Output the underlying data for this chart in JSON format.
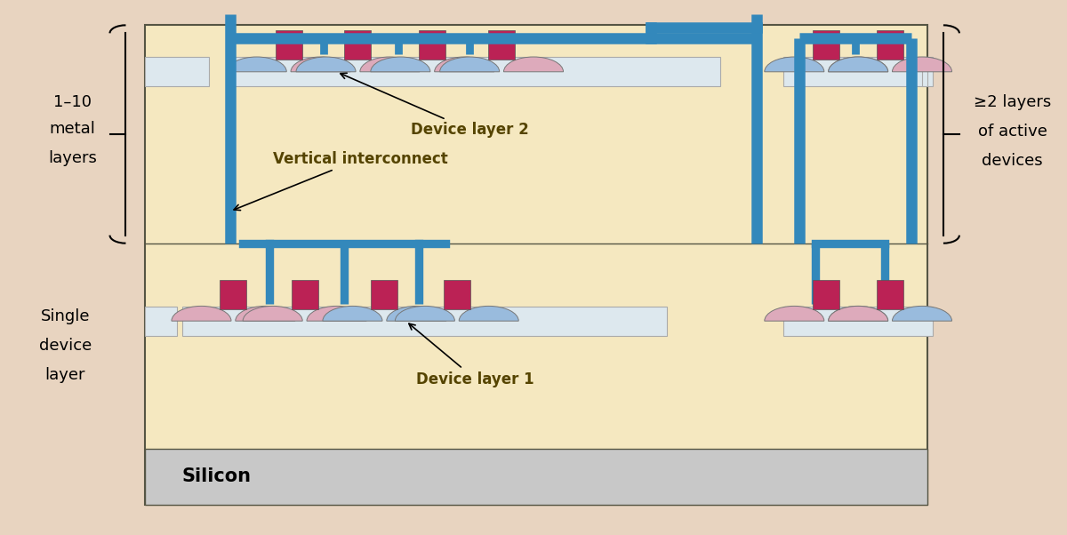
{
  "bg_color": "#e8d4c0",
  "main_fill": "#f5e8c0",
  "main_edge": "#555544",
  "silicon_fill": "#c8c8c8",
  "blue": "#3388bb",
  "metal_color": "#bb2255",
  "dev_blue": "#99bbdd",
  "dev_pink": "#ddaabb",
  "strip_fill": "#dde8ee",
  "strip_edge": "#aaaaaa",
  "text_color": "#333300",
  "silicon_label": "Silicon",
  "left_label_1": "1–10",
  "left_label_2": "metal",
  "left_label_3": "layers",
  "left_label_4": "Single",
  "left_label_5": "device",
  "left_label_6": "layer",
  "right_label_1": "≥2 layers",
  "right_label_2": "of active",
  "right_label_3": "devices",
  "annot_layer2": "Device layer 2",
  "annot_vi": "Vertical interconnect",
  "annot_layer1": "Device layer 1",
  "fontsize": 13,
  "note_color": "#554400"
}
